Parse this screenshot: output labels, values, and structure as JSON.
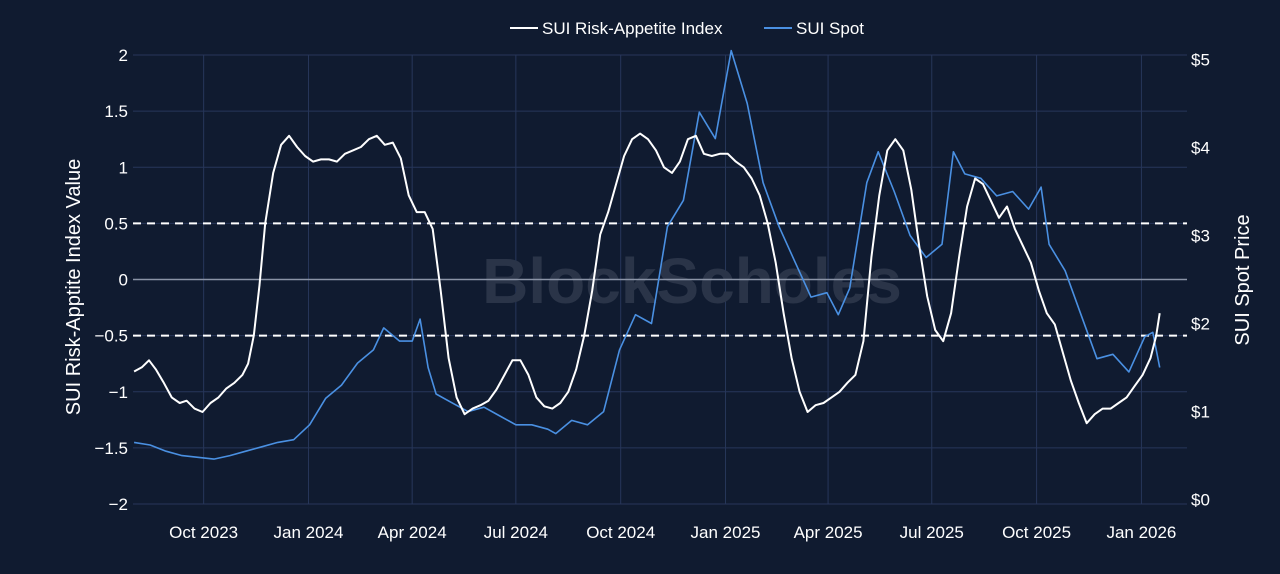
{
  "chart_data": {
    "type": "line",
    "title": "",
    "watermark": "BlockScholes",
    "xlabel": "",
    "ylabel_left": "SUI Risk-Apptite Index Value",
    "ylabel_right": "SUI Spot Price",
    "ylim_left": [
      -2,
      2
    ],
    "ylim_right": [
      -0.05,
      5.05
    ],
    "x_range": [
      "2023-07-31",
      "2026-02-10"
    ],
    "grid": true,
    "legend_position": "top-center",
    "x_ticks": [
      "2023-10-01",
      "2024-01-01",
      "2024-04-01",
      "2024-07-01",
      "2024-10-01",
      "2025-01-01",
      "2025-04-01",
      "2025-07-01",
      "2025-10-01",
      "2026-01-01"
    ],
    "x_tick_labels": [
      "Oct 2023",
      "Jan 2024",
      "Apr 2024",
      "Jul 2024",
      "Oct 2024",
      "Jan 2025",
      "Apr 2025",
      "Jul 2025",
      "Oct 2025",
      "Jan 2026"
    ],
    "y_ticks_left": [
      2,
      1.5,
      1,
      0.5,
      0,
      -0.5,
      -1,
      -1.5,
      -2
    ],
    "y_tick_labels_left": [
      "2",
      "1.5",
      "1",
      "0.5",
      "0",
      "−0.5",
      "−1",
      "−1.5",
      "−2"
    ],
    "y_ticks_right": [
      0,
      1,
      2,
      3,
      4,
      5
    ],
    "y_tick_labels_right": [
      "$0",
      "$1",
      "$2",
      "$3",
      "$4",
      "$5"
    ],
    "reference_lines": [
      0.5,
      -0.5
    ],
    "colors": {
      "background": "#101b30",
      "grid": "#27365a",
      "index": "#ffffff",
      "spot": "#4a90e2",
      "zero_line": "#8a93a6"
    },
    "series": [
      {
        "name": "SUI Risk-Appetite Index",
        "axis": "left",
        "points": [
          [
            "2023-08-01",
            -0.82
          ],
          [
            "2023-08-08",
            -0.78
          ],
          [
            "2023-08-14",
            -0.72
          ],
          [
            "2023-08-20",
            -0.8
          ],
          [
            "2023-08-27",
            -0.92
          ],
          [
            "2023-09-03",
            -1.05
          ],
          [
            "2023-09-10",
            -1.1
          ],
          [
            "2023-09-16",
            -1.08
          ],
          [
            "2023-09-23",
            -1.15
          ],
          [
            "2023-09-30",
            -1.18
          ],
          [
            "2023-10-07",
            -1.1
          ],
          [
            "2023-10-14",
            -1.05
          ],
          [
            "2023-10-21",
            -0.97
          ],
          [
            "2023-10-28",
            -0.92
          ],
          [
            "2023-11-04",
            -0.85
          ],
          [
            "2023-11-09",
            -0.75
          ],
          [
            "2023-11-14",
            -0.5
          ],
          [
            "2023-11-19",
            -0.05
          ],
          [
            "2023-11-24",
            0.5
          ],
          [
            "2023-12-01",
            0.95
          ],
          [
            "2023-12-08",
            1.2
          ],
          [
            "2023-12-15",
            1.28
          ],
          [
            "2023-12-22",
            1.18
          ],
          [
            "2023-12-29",
            1.1
          ],
          [
            "2024-01-05",
            1.05
          ],
          [
            "2024-01-12",
            1.07
          ],
          [
            "2024-01-19",
            1.07
          ],
          [
            "2024-01-26",
            1.05
          ],
          [
            "2024-02-02",
            1.12
          ],
          [
            "2024-02-09",
            1.15
          ],
          [
            "2024-02-16",
            1.18
          ],
          [
            "2024-02-23",
            1.25
          ],
          [
            "2024-03-01",
            1.28
          ],
          [
            "2024-03-08",
            1.2
          ],
          [
            "2024-03-15",
            1.22
          ],
          [
            "2024-03-22",
            1.08
          ],
          [
            "2024-03-29",
            0.75
          ],
          [
            "2024-04-05",
            0.6
          ],
          [
            "2024-04-12",
            0.6
          ],
          [
            "2024-04-19",
            0.45
          ],
          [
            "2024-04-26",
            -0.1
          ],
          [
            "2024-05-03",
            -0.7
          ],
          [
            "2024-05-10",
            -1.05
          ],
          [
            "2024-05-17",
            -1.2
          ],
          [
            "2024-05-24",
            -1.15
          ],
          [
            "2024-05-31",
            -1.12
          ],
          [
            "2024-06-07",
            -1.08
          ],
          [
            "2024-06-14",
            -0.98
          ],
          [
            "2024-06-21",
            -0.85
          ],
          [
            "2024-06-28",
            -0.72
          ],
          [
            "2024-07-05",
            -0.72
          ],
          [
            "2024-07-12",
            -0.85
          ],
          [
            "2024-07-19",
            -1.05
          ],
          [
            "2024-07-26",
            -1.13
          ],
          [
            "2024-08-02",
            -1.15
          ],
          [
            "2024-08-09",
            -1.1
          ],
          [
            "2024-08-16",
            -1.0
          ],
          [
            "2024-08-23",
            -0.8
          ],
          [
            "2024-08-30",
            -0.5
          ],
          [
            "2024-09-06",
            -0.1
          ],
          [
            "2024-09-13",
            0.4
          ],
          [
            "2024-09-20",
            0.6
          ],
          [
            "2024-09-27",
            0.85
          ],
          [
            "2024-10-04",
            1.1
          ],
          [
            "2024-10-11",
            1.25
          ],
          [
            "2024-10-18",
            1.3
          ],
          [
            "2024-10-25",
            1.25
          ],
          [
            "2024-11-01",
            1.15
          ],
          [
            "2024-11-08",
            1.0
          ],
          [
            "2024-11-15",
            0.95
          ],
          [
            "2024-11-22",
            1.05
          ],
          [
            "2024-11-29",
            1.25
          ],
          [
            "2024-12-06",
            1.28
          ],
          [
            "2024-12-13",
            1.12
          ],
          [
            "2024-12-20",
            1.1
          ],
          [
            "2024-12-27",
            1.12
          ],
          [
            "2025-01-03",
            1.12
          ],
          [
            "2025-01-10",
            1.05
          ],
          [
            "2025-01-17",
            1.0
          ],
          [
            "2025-01-24",
            0.9
          ],
          [
            "2025-01-31",
            0.75
          ],
          [
            "2025-02-07",
            0.5
          ],
          [
            "2025-02-14",
            0.15
          ],
          [
            "2025-02-21",
            -0.3
          ],
          [
            "2025-02-28",
            -0.7
          ],
          [
            "2025-03-07",
            -1.0
          ],
          [
            "2025-03-14",
            -1.18
          ],
          [
            "2025-03-21",
            -1.12
          ],
          [
            "2025-03-28",
            -1.1
          ],
          [
            "2025-04-04",
            -1.05
          ],
          [
            "2025-04-11",
            -1.0
          ],
          [
            "2025-04-18",
            -0.92
          ],
          [
            "2025-04-25",
            -0.85
          ],
          [
            "2025-05-02",
            -0.55
          ],
          [
            "2025-05-09",
            0.2
          ],
          [
            "2025-05-16",
            0.75
          ],
          [
            "2025-05-23",
            1.15
          ],
          [
            "2025-05-30",
            1.25
          ],
          [
            "2025-06-06",
            1.15
          ],
          [
            "2025-06-13",
            0.8
          ],
          [
            "2025-06-20",
            0.3
          ],
          [
            "2025-06-27",
            -0.15
          ],
          [
            "2025-07-04",
            -0.45
          ],
          [
            "2025-07-11",
            -0.55
          ],
          [
            "2025-07-18",
            -0.3
          ],
          [
            "2025-07-25",
            0.2
          ],
          [
            "2025-08-01",
            0.65
          ],
          [
            "2025-08-08",
            0.9
          ],
          [
            "2025-08-15",
            0.85
          ],
          [
            "2025-08-22",
            0.7
          ],
          [
            "2025-08-29",
            0.55
          ],
          [
            "2025-09-05",
            0.65
          ],
          [
            "2025-09-12",
            0.45
          ],
          [
            "2025-09-19",
            0.3
          ],
          [
            "2025-09-26",
            0.15
          ],
          [
            "2025-10-03",
            -0.1
          ],
          [
            "2025-10-10",
            -0.3
          ],
          [
            "2025-10-17",
            -0.4
          ],
          [
            "2025-10-24",
            -0.65
          ],
          [
            "2025-10-31",
            -0.9
          ],
          [
            "2025-11-07",
            -1.1
          ],
          [
            "2025-11-14",
            -1.28
          ],
          [
            "2025-11-21",
            -1.2
          ],
          [
            "2025-11-28",
            -1.15
          ],
          [
            "2025-12-05",
            -1.15
          ],
          [
            "2025-12-12",
            -1.1
          ],
          [
            "2025-12-19",
            -1.05
          ],
          [
            "2025-12-26",
            -0.95
          ],
          [
            "2026-01-02",
            -0.85
          ],
          [
            "2026-01-09",
            -0.7
          ],
          [
            "2026-01-14",
            -0.5
          ],
          [
            "2026-01-17",
            -0.3
          ]
        ]
      },
      {
        "name": "SUI Spot",
        "axis": "right",
        "points": [
          [
            "2023-08-01",
            0.65
          ],
          [
            "2023-08-15",
            0.62
          ],
          [
            "2023-08-29",
            0.55
          ],
          [
            "2023-09-12",
            0.5
          ],
          [
            "2023-09-26",
            0.48
          ],
          [
            "2023-10-10",
            0.46
          ],
          [
            "2023-10-24",
            0.5
          ],
          [
            "2023-11-07",
            0.55
          ],
          [
            "2023-11-21",
            0.6
          ],
          [
            "2023-12-05",
            0.65
          ],
          [
            "2023-12-19",
            0.68
          ],
          [
            "2024-01-02",
            0.85
          ],
          [
            "2024-01-16",
            1.15
          ],
          [
            "2024-01-30",
            1.3
          ],
          [
            "2024-02-13",
            1.55
          ],
          [
            "2024-02-27",
            1.7
          ],
          [
            "2024-03-07",
            1.95
          ],
          [
            "2024-03-21",
            1.8
          ],
          [
            "2024-04-01",
            1.8
          ],
          [
            "2024-04-08",
            2.05
          ],
          [
            "2024-04-15",
            1.5
          ],
          [
            "2024-04-22",
            1.2
          ],
          [
            "2024-05-06",
            1.1
          ],
          [
            "2024-05-20",
            1.0
          ],
          [
            "2024-06-03",
            1.05
          ],
          [
            "2024-06-17",
            0.95
          ],
          [
            "2024-07-01",
            0.85
          ],
          [
            "2024-07-15",
            0.85
          ],
          [
            "2024-07-29",
            0.8
          ],
          [
            "2024-08-05",
            0.75
          ],
          [
            "2024-08-19",
            0.9
          ],
          [
            "2024-09-02",
            0.85
          ],
          [
            "2024-09-16",
            1.0
          ],
          [
            "2024-09-30",
            1.7
          ],
          [
            "2024-10-14",
            2.1
          ],
          [
            "2024-10-28",
            2.0
          ],
          [
            "2024-11-11",
            3.1
          ],
          [
            "2024-11-25",
            3.4
          ],
          [
            "2024-12-09",
            4.4
          ],
          [
            "2024-12-23",
            4.1
          ],
          [
            "2025-01-06",
            5.1
          ],
          [
            "2025-01-20",
            4.5
          ],
          [
            "2025-02-03",
            3.6
          ],
          [
            "2025-02-17",
            3.1
          ],
          [
            "2025-03-03",
            2.7
          ],
          [
            "2025-03-17",
            2.3
          ],
          [
            "2025-03-31",
            2.35
          ],
          [
            "2025-04-10",
            2.1
          ],
          [
            "2025-04-20",
            2.4
          ],
          [
            "2025-05-05",
            3.6
          ],
          [
            "2025-05-15",
            3.95
          ],
          [
            "2025-05-29",
            3.5
          ],
          [
            "2025-06-12",
            3.0
          ],
          [
            "2025-06-26",
            2.75
          ],
          [
            "2025-07-10",
            2.9
          ],
          [
            "2025-07-20",
            3.95
          ],
          [
            "2025-07-30",
            3.7
          ],
          [
            "2025-08-13",
            3.65
          ],
          [
            "2025-08-27",
            3.45
          ],
          [
            "2025-09-10",
            3.5
          ],
          [
            "2025-09-24",
            3.3
          ],
          [
            "2025-10-05",
            3.55
          ],
          [
            "2025-10-12",
            2.9
          ],
          [
            "2025-10-26",
            2.6
          ],
          [
            "2025-11-09",
            2.1
          ],
          [
            "2025-11-23",
            1.6
          ],
          [
            "2025-12-07",
            1.65
          ],
          [
            "2025-12-21",
            1.45
          ],
          [
            "2026-01-04",
            1.85
          ],
          [
            "2026-01-11",
            1.9
          ],
          [
            "2026-01-17",
            1.5
          ]
        ]
      }
    ]
  }
}
